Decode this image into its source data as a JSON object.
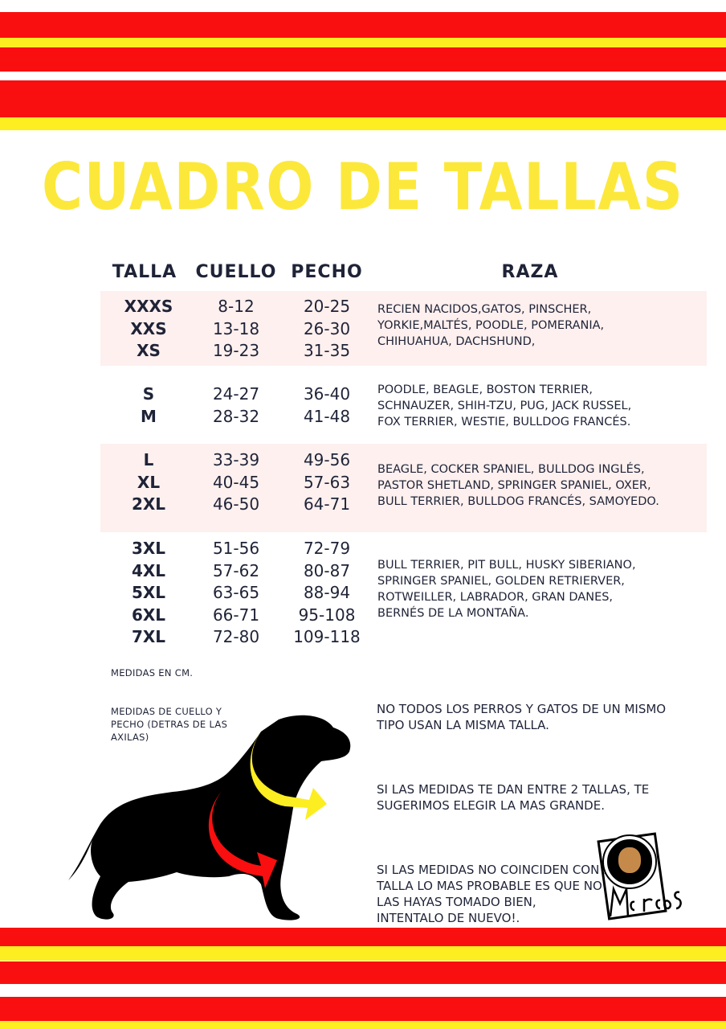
{
  "title": "CUADRO DE TALLAS",
  "headers": {
    "talla": "TALLA",
    "cuello": "CUELLO",
    "pecho": "PECHO",
    "raza": "RAZA"
  },
  "groups": [
    {
      "tallas": "XXXS\nXXS\nXS",
      "cuello": "8-12\n13-18\n19-23",
      "pecho": "20-25\n26-30\n31-35",
      "raza": "RECIEN NACIDOS,GATOS, PINSCHER,\nYORKIE,MALTÉS, POODLE, POMERANIA,\nCHIHUAHUA, DACHSHUND,"
    },
    {
      "tallas": "S\nM",
      "cuello": "24-27\n28-32",
      "pecho": "36-40\n41-48",
      "raza": "POODLE, BEAGLE, BOSTON TERRIER,\nSCHNAUZER, SHIH-TZU, PUG, JACK RUSSEL,\nFOX TERRIER, WESTIE, BULLDOG FRANCÉS."
    },
    {
      "tallas": "L\nXL\n2XL",
      "cuello": "33-39\n40-45\n46-50",
      "pecho": "49-56\n57-63\n64-71",
      "raza": "BEAGLE, COCKER SPANIEL, BULLDOG INGLÉS,\nPASTOR SHETLAND, SPRINGER SPANIEL, OXER,\nBULL TERRIER, BULLDOG FRANCÉS, SAMOYEDO."
    },
    {
      "tallas": "3XL\n4XL\n5XL\n6XL\n7XL",
      "cuello": "51-56\n57-62\n63-65\n66-71\n72-80",
      "pecho": "72-79\n80-87\n88-94\n95-108\n109-118",
      "raza": "BULL TERRIER, PIT BULL, HUSKY SIBERIANO,\nSPRINGER SPANIEL, GOLDEN RETRIERVER,\nROTWEILLER, LABRADOR, GRAN DANES,\nBERNÉS DE LA MONTAÑA."
    }
  ],
  "units_note": "MEDIDAS EN CM.",
  "measure_note": "MEDIDAS DE CUELLO Y\nPECHO (DETRAS DE LAS\nAXILAS)",
  "notes": [
    "NO TODOS LOS PERROS Y GATOS DE UN MISMO\nTIPO USAN LA MISMA TALLA.",
    "SI LAS MEDIDAS TE DAN ENTRE 2 TALLAS, TE\nSUGERIMOS ELEGIR LA MAS GRANDE.",
    "SI LAS MEDIDAS NO COINCIDEN CON NIGUNA\nTALLA LO MAS PROBABLE ES QUE NO\nLAS HAYAS TOMADO BIEN,\nINTENTALO DE NUEVO!."
  ],
  "logo": {
    "text": "Marcos Pet"
  },
  "colors": {
    "red": "#f90f0f",
    "yellow": "#fcee21",
    "title": "#fce83a",
    "shade": "#fdf0ef"
  }
}
